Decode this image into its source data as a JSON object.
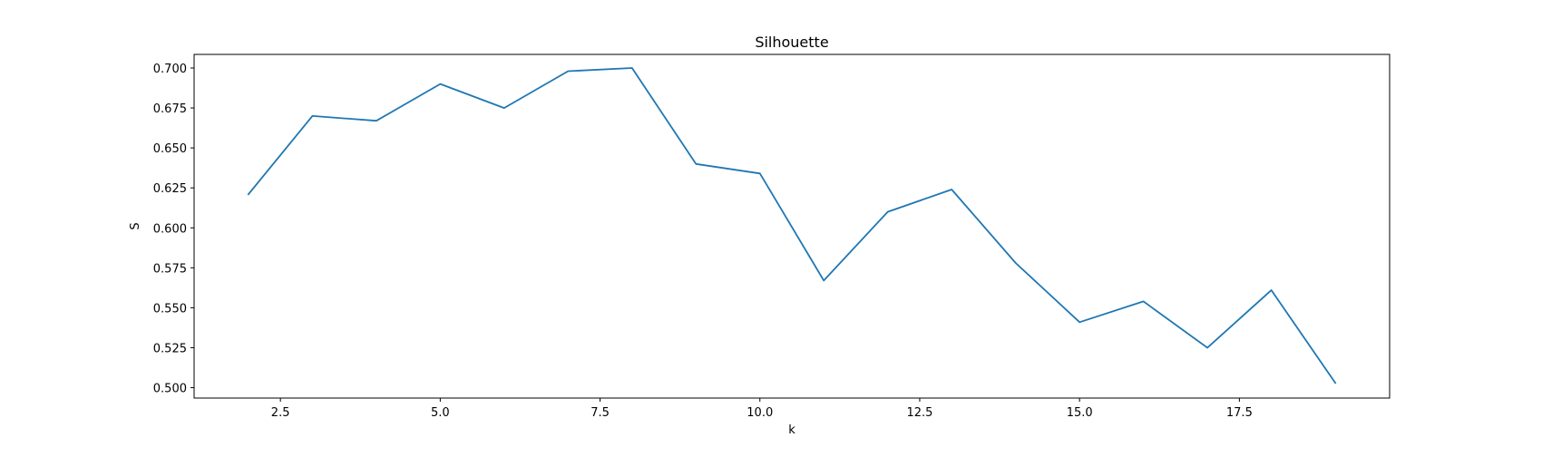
{
  "chart_data": {
    "type": "line",
    "title": "Silhouette",
    "xlabel": "k",
    "ylabel": "S",
    "xlim": [
      1.15,
      19.85
    ],
    "ylim": [
      0.4935,
      0.7085
    ],
    "xticks": [
      2.5,
      5.0,
      7.5,
      10.0,
      12.5,
      15.0,
      17.5
    ],
    "xtick_labels": [
      "2.5",
      "5.0",
      "7.5",
      "10.0",
      "12.5",
      "15.0",
      "17.5"
    ],
    "yticks": [
      0.5,
      0.525,
      0.55,
      0.575,
      0.6,
      0.625,
      0.65,
      0.675,
      0.7
    ],
    "ytick_labels": [
      "0.500",
      "0.525",
      "0.550",
      "0.575",
      "0.600",
      "0.625",
      "0.650",
      "0.675",
      "0.700"
    ],
    "grid": false,
    "series": [
      {
        "color": "#1f77b4",
        "x": [
          2,
          3,
          4,
          5,
          6,
          7,
          8,
          9,
          10,
          11,
          12,
          13,
          14,
          15,
          16,
          17,
          18,
          19
        ],
        "y": [
          0.621,
          0.67,
          0.667,
          0.69,
          0.675,
          0.698,
          0.7,
          0.64,
          0.634,
          0.567,
          0.61,
          0.624,
          0.578,
          0.541,
          0.554,
          0.525,
          0.561,
          0.503
        ]
      }
    ]
  }
}
